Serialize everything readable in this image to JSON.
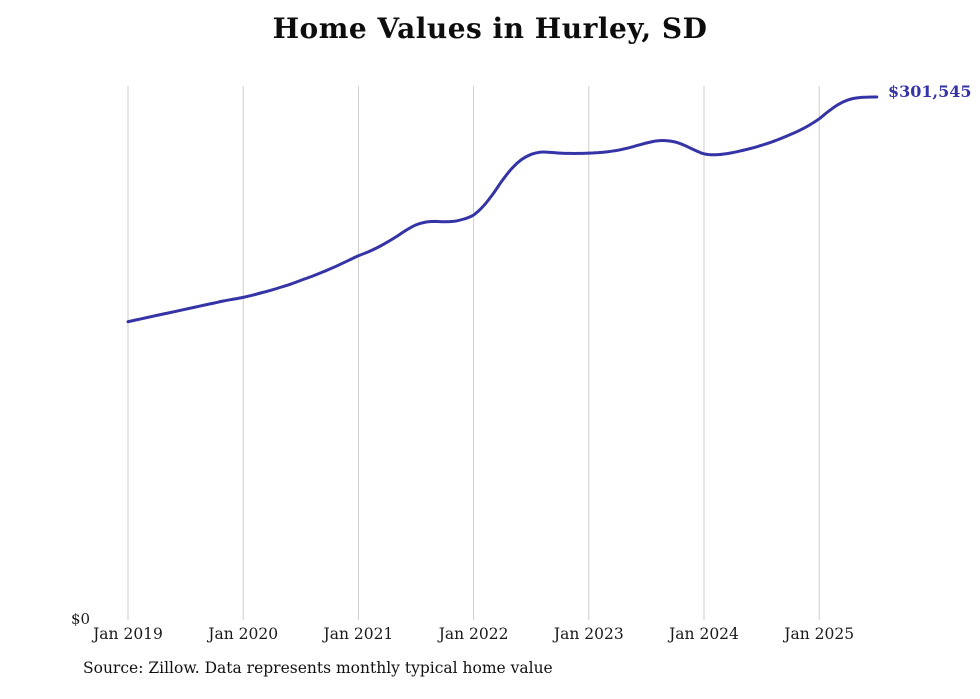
{
  "title": "Home Values in Hurley, SD",
  "end_label": "$301,545",
  "y_axis": {
    "zero_label": "$0"
  },
  "source_note": "Source: Zillow. Data represents monthly typical home value",
  "colors": {
    "line": "#3534a6",
    "end_label": "#3534a6",
    "grid": "#cccccc",
    "text": "#1a1a1a",
    "title": "#0d0d0d"
  },
  "chart_data": {
    "type": "line",
    "title": "Home Values in Hurley, SD",
    "xlabel": "",
    "ylabel": "",
    "ylim": [
      0,
      310000
    ],
    "grid": "vertical-at-january-ticks",
    "legend": "none",
    "x_start": "2019-01",
    "x_end": "2025-07",
    "x_interval": "monthly",
    "x_tick_labels": [
      "Jan 2019",
      "Jan 2020",
      "Jan 2021",
      "Jan 2022",
      "Jan 2023",
      "Jan 2024",
      "Jan 2025"
    ],
    "x_tick_month_indices": [
      0,
      12,
      24,
      36,
      48,
      60,
      72
    ],
    "end_value": 301545,
    "series": [
      {
        "name": "Monthly typical home value",
        "values": [
          172000,
          173200,
          174400,
          175600,
          176800,
          178000,
          179200,
          180400,
          181600,
          182800,
          184000,
          185000,
          186000,
          187300,
          188800,
          190300,
          192000,
          193800,
          195800,
          197800,
          200000,
          202300,
          204800,
          207400,
          210000,
          212200,
          214800,
          217800,
          221200,
          224800,
          227800,
          229400,
          229800,
          229600,
          229900,
          231200,
          233500,
          238500,
          245500,
          253500,
          260500,
          265500,
          268500,
          269800,
          269600,
          269200,
          269000,
          269000,
          269200,
          269500,
          270000,
          270800,
          272000,
          273500,
          275000,
          276200,
          276400,
          275600,
          273600,
          271000,
          268800,
          268200,
          268600,
          269500,
          270700,
          272100,
          273700,
          275500,
          277600,
          279900,
          282400,
          285400,
          289000,
          293400,
          297300,
          299900,
          301100,
          301500,
          301545
        ]
      }
    ]
  }
}
